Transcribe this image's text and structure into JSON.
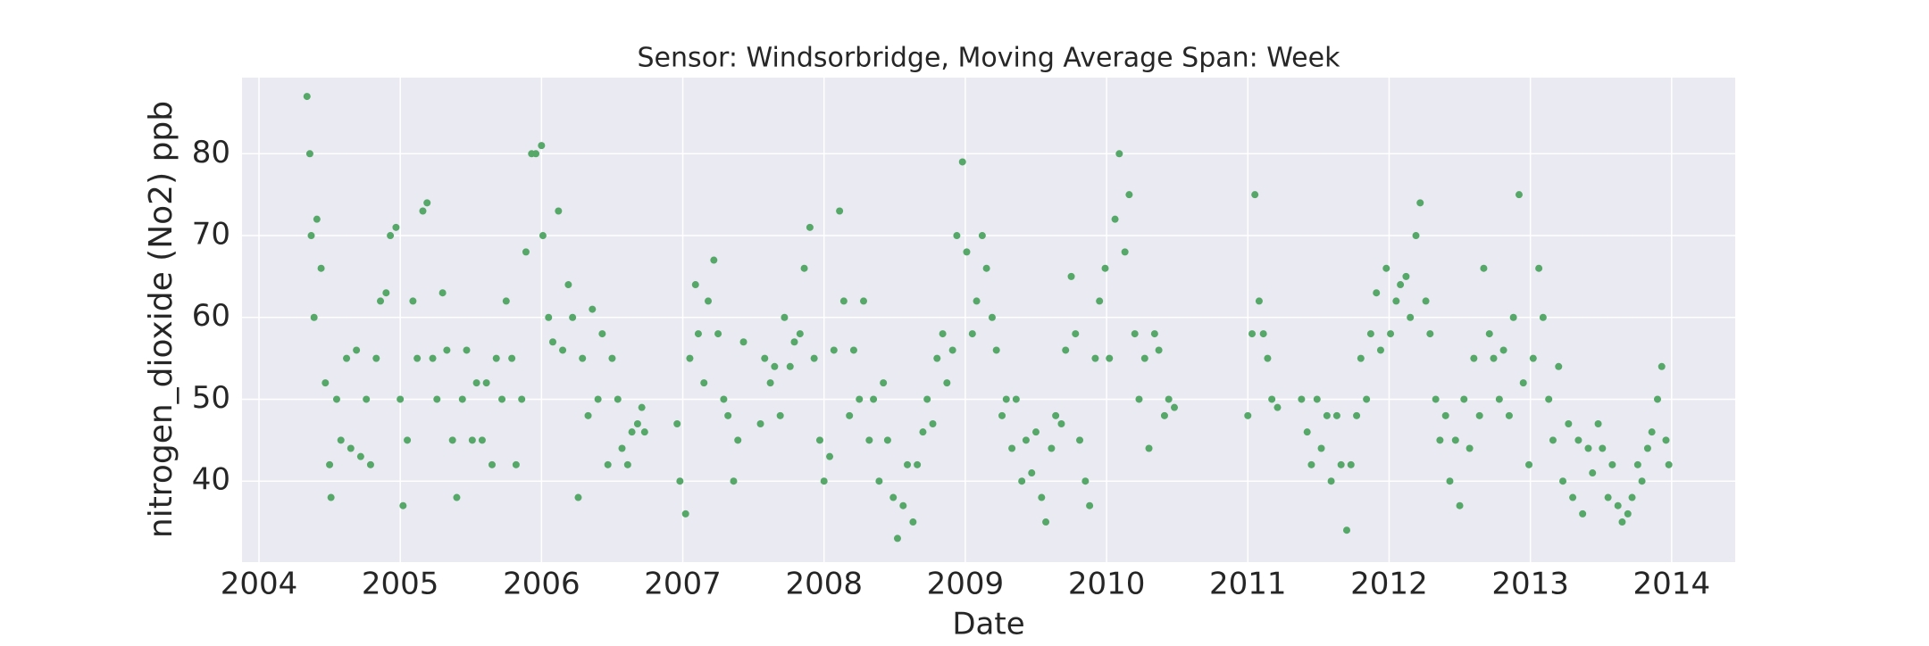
{
  "chart_data": {
    "type": "scatter",
    "title": "Sensor: Windsorbridge, Moving Average Span: Week",
    "xlabel": "Date",
    "ylabel": "nitrogen_dioxide (No2) ppb",
    "x": [
      2004.34,
      2004.36,
      2004.37,
      2004.39,
      2004.41,
      2004.44,
      2004.47,
      2004.5,
      2004.51,
      2004.55,
      2004.58,
      2004.62,
      2004.65,
      2004.69,
      2004.72,
      2004.76,
      2004.79,
      2004.83,
      2004.86,
      2004.9,
      2004.93,
      2004.97,
      2005.0,
      2005.02,
      2005.05,
      2005.09,
      2005.12,
      2005.16,
      2005.19,
      2005.23,
      2005.26,
      2005.3,
      2005.33,
      2005.37,
      2005.4,
      2005.44,
      2005.47,
      2005.51,
      2005.54,
      2005.58,
      2005.61,
      2005.65,
      2005.68,
      2005.72,
      2005.75,
      2005.79,
      2005.82,
      2005.86,
      2005.89,
      2005.93,
      2005.96,
      2006.0,
      2006.01,
      2006.05,
      2006.08,
      2006.12,
      2006.15,
      2006.19,
      2006.22,
      2006.26,
      2006.29,
      2006.33,
      2006.36,
      2006.4,
      2006.43,
      2006.47,
      2006.5,
      2006.54,
      2006.57,
      2006.61,
      2006.64,
      2006.68,
      2006.71,
      2006.73,
      2006.96,
      2006.98,
      2007.02,
      2007.05,
      2007.09,
      2007.11,
      2007.15,
      2007.18,
      2007.22,
      2007.25,
      2007.29,
      2007.32,
      2007.36,
      2007.39,
      2007.43,
      2007.55,
      2007.58,
      2007.62,
      2007.65,
      2007.69,
      2007.72,
      2007.76,
      2007.79,
      2007.83,
      2007.86,
      2007.9,
      2007.93,
      2007.97,
      2008.0,
      2008.04,
      2008.07,
      2008.11,
      2008.14,
      2008.18,
      2008.21,
      2008.25,
      2008.28,
      2008.32,
      2008.35,
      2008.39,
      2008.42,
      2008.45,
      2008.49,
      2008.52,
      2008.56,
      2008.59,
      2008.63,
      2008.66,
      2008.7,
      2008.73,
      2008.77,
      2008.8,
      2008.84,
      2008.87,
      2008.91,
      2008.94,
      2008.98,
      2009.01,
      2009.05,
      2009.08,
      2009.12,
      2009.15,
      2009.19,
      2009.22,
      2009.26,
      2009.29,
      2009.33,
      2009.36,
      2009.4,
      2009.43,
      2009.47,
      2009.5,
      2009.54,
      2009.57,
      2009.61,
      2009.64,
      2009.68,
      2009.71,
      2009.75,
      2009.78,
      2009.81,
      2009.85,
      2009.88,
      2009.92,
      2009.95,
      2009.99,
      2010.02,
      2010.06,
      2010.09,
      2010.13,
      2010.16,
      2010.2,
      2010.23,
      2010.27,
      2010.3,
      2010.34,
      2010.37,
      2010.41,
      2010.44,
      2010.48,
      2011.0,
      2011.03,
      2011.05,
      2011.08,
      2011.11,
      2011.14,
      2011.17,
      2011.21,
      2011.38,
      2011.42,
      2011.45,
      2011.49,
      2011.52,
      2011.56,
      2011.59,
      2011.63,
      2011.66,
      2011.7,
      2011.73,
      2011.77,
      2011.8,
      2011.84,
      2011.87,
      2011.91,
      2011.94,
      2011.98,
      2012.01,
      2012.05,
      2012.08,
      2012.12,
      2012.15,
      2012.19,
      2012.22,
      2012.26,
      2012.29,
      2012.33,
      2012.36,
      2012.4,
      2012.43,
      2012.47,
      2012.5,
      2012.53,
      2012.57,
      2012.6,
      2012.64,
      2012.67,
      2012.71,
      2012.74,
      2012.78,
      2012.81,
      2012.85,
      2012.88,
      2012.92,
      2012.95,
      2012.99,
      2013.02,
      2013.06,
      2013.09,
      2013.13,
      2013.16,
      2013.2,
      2013.23,
      2013.27,
      2013.3,
      2013.34,
      2013.37,
      2013.41,
      2013.44,
      2013.48,
      2013.51,
      2013.55,
      2013.58,
      2013.62,
      2013.65,
      2013.69,
      2013.72,
      2013.76,
      2013.79,
      2013.83,
      2013.86,
      2013.9,
      2013.93,
      2013.96,
      2013.98
    ],
    "series": [
      {
        "color": "#55a868",
        "values": [
          87,
          80,
          70,
          60,
          72,
          66,
          52,
          42,
          38,
          50,
          45,
          55,
          44,
          56,
          43,
          50,
          42,
          55,
          62,
          63,
          70,
          71,
          50,
          37,
          45,
          62,
          55,
          73,
          74,
          55,
          50,
          63,
          56,
          45,
          38,
          50,
          56,
          45,
          52,
          45,
          52,
          42,
          55,
          50,
          62,
          55,
          42,
          50,
          68,
          80,
          80,
          81,
          70,
          60,
          57,
          73,
          56,
          64,
          60,
          38,
          55,
          48,
          61,
          50,
          58,
          42,
          55,
          50,
          44,
          42,
          46,
          47,
          49,
          46,
          47,
          40,
          36,
          55,
          64,
          58,
          52,
          62,
          67,
          58,
          50,
          48,
          40,
          45,
          57,
          47,
          55,
          52,
          54,
          48,
          60,
          54,
          57,
          58,
          66,
          71,
          55,
          45,
          40,
          43,
          56,
          73,
          62,
          48,
          56,
          50,
          62,
          45,
          50,
          40,
          52,
          45,
          38,
          33,
          37,
          42,
          35,
          42,
          46,
          50,
          47,
          55,
          58,
          52,
          56,
          70,
          79,
          68,
          58,
          62,
          70,
          66,
          60,
          56,
          48,
          50,
          44,
          50,
          40,
          45,
          41,
          46,
          38,
          35,
          44,
          48,
          47,
          56,
          65,
          58,
          45,
          40,
          37,
          55,
          62,
          66,
          55,
          72,
          80,
          68,
          75,
          58,
          50,
          55,
          44,
          58,
          56,
          48,
          50,
          49,
          48,
          58,
          75,
          62,
          58,
          55,
          50,
          49,
          50,
          46,
          42,
          50,
          44,
          48,
          40,
          48,
          42,
          34,
          42,
          48,
          55,
          50,
          58,
          63,
          56,
          66,
          58,
          62,
          64,
          65,
          60,
          70,
          74,
          62,
          58,
          50,
          45,
          48,
          40,
          45,
          37,
          50,
          44,
          55,
          48,
          66,
          58,
          55,
          50,
          56,
          48,
          60,
          75,
          52,
          42,
          55,
          66,
          60,
          50,
          45,
          54,
          40,
          47,
          38,
          45,
          36,
          44,
          41,
          47,
          44,
          38,
          42,
          37,
          35,
          36,
          38,
          42,
          40,
          44,
          46,
          50,
          54,
          45,
          42
        ]
      }
    ],
    "xlim": [
      2003.88,
      2014.45
    ],
    "xticks": [
      2004,
      2005,
      2006,
      2007,
      2008,
      2009,
      2010,
      2011,
      2012,
      2013,
      2014
    ],
    "ylim": [
      30.1,
      89.3
    ],
    "yticks": [
      40,
      50,
      60,
      70,
      80
    ],
    "grid": true
  }
}
